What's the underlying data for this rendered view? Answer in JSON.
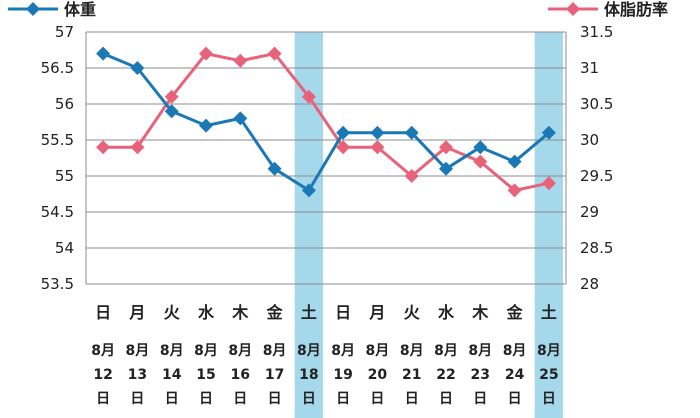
{
  "chart_data": {
    "type": "line",
    "categories": [
      "日",
      "月",
      "火",
      "水",
      "木",
      "金",
      "土",
      "日",
      "月",
      "火",
      "水",
      "木",
      "金",
      "土"
    ],
    "dates": [
      {
        "month": "8月",
        "day": "12",
        "suffix": "日"
      },
      {
        "month": "8月",
        "day": "13",
        "suffix": "日"
      },
      {
        "month": "8月",
        "day": "14",
        "suffix": "日"
      },
      {
        "month": "8月",
        "day": "15",
        "suffix": "日"
      },
      {
        "month": "8月",
        "day": "16",
        "suffix": "日"
      },
      {
        "month": "8月",
        "day": "17",
        "suffix": "日"
      },
      {
        "month": "8月",
        "day": "18",
        "suffix": "日"
      },
      {
        "month": "8月",
        "day": "19",
        "suffix": "日"
      },
      {
        "month": "8月",
        "day": "20",
        "suffix": "日"
      },
      {
        "month": "8月",
        "day": "21",
        "suffix": "日"
      },
      {
        "month": "8月",
        "day": "22",
        "suffix": "日"
      },
      {
        "month": "8月",
        "day": "23",
        "suffix": "日"
      },
      {
        "month": "8月",
        "day": "24",
        "suffix": "日"
      },
      {
        "month": "8月",
        "day": "25",
        "suffix": "日"
      }
    ],
    "highlighted_indices": [
      6,
      13
    ],
    "highlight_color": "#a6d8ec",
    "series": [
      {
        "name": "体重",
        "axis": "left",
        "color": "#1a78b4",
        "marker": "diamond",
        "values": [
          56.7,
          56.5,
          55.9,
          55.7,
          55.8,
          55.1,
          54.8,
          55.6,
          55.6,
          55.6,
          55.1,
          55.4,
          55.2,
          55.6
        ]
      },
      {
        "name": "体脂肪率",
        "axis": "right",
        "color": "#e8627a",
        "marker": "diamond",
        "values": [
          29.9,
          29.9,
          30.6,
          31.2,
          31.1,
          31.2,
          30.6,
          29.9,
          29.9,
          29.5,
          29.9,
          29.7,
          29.3,
          29.4
        ]
      }
    ],
    "y_left": {
      "ylim": [
        53.5,
        57
      ],
      "ticks": [
        "57",
        "56.5",
        "56",
        "55.5",
        "55",
        "54.5",
        "54",
        "53.5"
      ],
      "tick_values": [
        57,
        56.5,
        56,
        55.5,
        55,
        54.5,
        54,
        53.5
      ]
    },
    "y_right": {
      "ylim": [
        28,
        31.5
      ],
      "ticks": [
        "31.5",
        "31",
        "30.5",
        "30",
        "29.5",
        "29",
        "28.5",
        "28"
      ],
      "tick_values": [
        31.5,
        31,
        30.5,
        30,
        29.5,
        29,
        28.5,
        28
      ]
    },
    "grid": true,
    "legend": [
      {
        "label": "体重",
        "placement": "top-left"
      },
      {
        "label": "体脂肪率",
        "placement": "top-right"
      }
    ]
  }
}
